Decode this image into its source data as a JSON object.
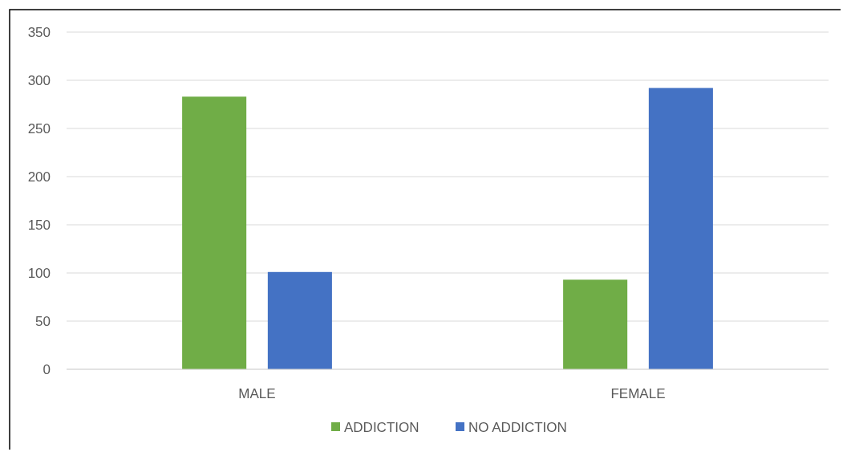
{
  "chart_data": {
    "type": "bar",
    "categories": [
      "MALE",
      "FEMALE"
    ],
    "series": [
      {
        "name": "ADDICTION",
        "color": "#70ad47",
        "values": [
          283,
          93
        ]
      },
      {
        "name": "NO ADDICTION",
        "color": "#4472c4",
        "values": [
          101,
          292
        ]
      }
    ],
    "ylim": [
      0,
      350
    ],
    "yticks": [
      0,
      50,
      100,
      150,
      200,
      250,
      300,
      350
    ],
    "grid": "y",
    "legend": "bottom"
  }
}
